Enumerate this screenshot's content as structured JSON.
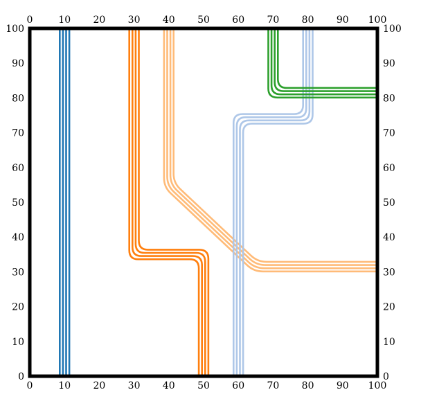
{
  "chart_data": {
    "type": "line",
    "xlim": [
      0,
      100
    ],
    "ylim": [
      0,
      100
    ],
    "grid": false,
    "x_ticks": [
      0,
      10,
      20,
      30,
      40,
      50,
      60,
      70,
      80,
      90,
      100
    ],
    "y_ticks": [
      0,
      10,
      20,
      30,
      40,
      50,
      60,
      70,
      80,
      90,
      100
    ],
    "tick_labels": [
      "0",
      "10",
      "20",
      "30",
      "40",
      "50",
      "60",
      "70",
      "80",
      "90",
      "100"
    ],
    "series": [
      {
        "color": "#1f77b4",
        "strands": 4,
        "points": [
          [
            10,
            100
          ],
          [
            10,
            0
          ]
        ]
      },
      {
        "color": "#ff7f0e",
        "strands": 4,
        "points": [
          [
            30,
            100
          ],
          [
            30,
            35
          ],
          [
            50,
            35
          ],
          [
            50,
            0
          ]
        ]
      },
      {
        "color": "#ffbb78",
        "strands": 4,
        "points": [
          [
            40,
            100
          ],
          [
            40,
            55
          ],
          [
            65,
            31.5
          ],
          [
            100,
            31.5
          ]
        ]
      },
      {
        "color": "#aec7e8",
        "strands": 4,
        "points": [
          [
            80,
            100
          ],
          [
            80,
            74
          ],
          [
            60,
            74
          ],
          [
            60,
            0
          ]
        ]
      },
      {
        "color": "#2ca02c",
        "strands": 4,
        "points": [
          [
            70,
            100
          ],
          [
            70,
            81.5
          ],
          [
            100,
            81.5
          ]
        ]
      }
    ]
  }
}
